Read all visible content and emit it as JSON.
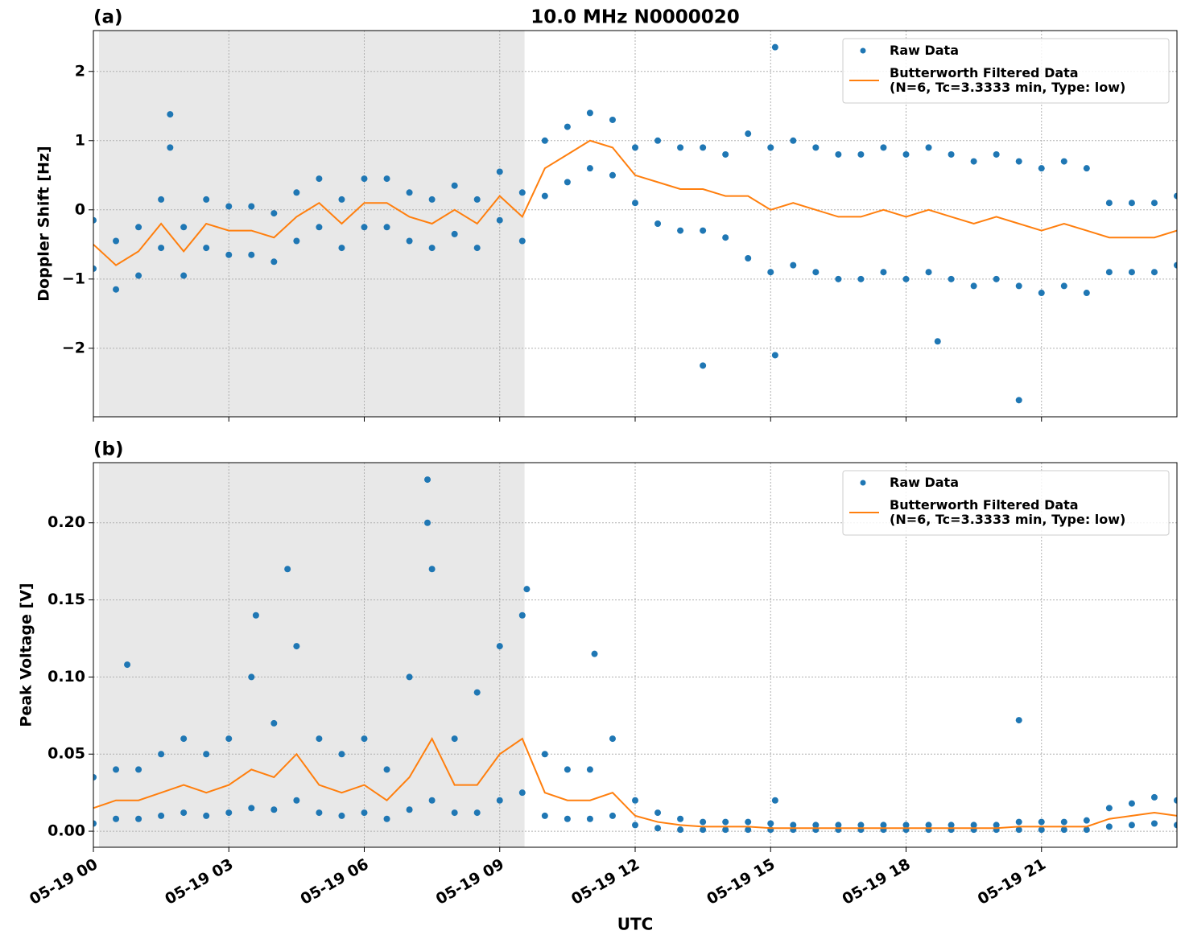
{
  "chart_data": [
    {
      "type": "line",
      "title": "10.0 MHz N0000020",
      "panel_label": "(a)",
      "ylabel": "Doppler Shift [Hz]",
      "xlim": [
        0,
        24
      ],
      "xticks": [
        0,
        3,
        6,
        9,
        12,
        15,
        18,
        21
      ],
      "ylim": [
        -2.99,
        2.59
      ],
      "yticks": [
        {
          "value": -2,
          "label": "−2"
        },
        {
          "value": -1,
          "label": "−1"
        },
        0,
        1,
        2
      ],
      "grid": true,
      "legend": "upper right",
      "shaded_span": [
        0.125,
        9.55
      ],
      "series": [
        {
          "name": "Raw Data",
          "kind": "scatter",
          "color": "#1f77b4",
          "x": [
            0,
            0.5,
            1,
            1.5,
            2,
            2.5,
            3,
            3.5,
            4,
            4.5,
            5,
            5.5,
            6,
            6.5,
            7,
            7.5,
            8,
            8.5,
            9,
            9.5,
            10,
            10.5,
            11,
            11.5,
            12,
            12.5,
            13,
            13.5,
            14,
            14.5,
            15,
            15.5,
            16,
            16.5,
            17,
            17.5,
            18,
            18.5,
            19,
            19.5,
            20,
            20.5,
            21,
            21.5,
            22,
            22.5,
            23,
            23.5,
            24,
            0,
            0.5,
            1,
            1.5,
            2,
            2.5,
            3,
            3.5,
            4,
            4.5,
            5,
            5.5,
            6,
            6.5,
            7,
            7.5,
            8,
            8.5,
            9,
            9.5,
            10,
            10.5,
            11,
            11.5,
            12,
            12.5,
            13,
            13.5,
            14,
            14.5,
            15,
            15.5,
            16,
            16.5,
            17,
            17.5,
            18,
            18.5,
            19,
            19.5,
            20,
            20.5,
            21,
            21.5,
            22,
            22.5,
            23,
            23.5,
            24,
            1.7,
            1.7,
            15.1,
            13.5,
            20.5,
            15.1,
            18.7
          ],
          "values": [
            -0.15,
            -0.45,
            -0.25,
            0.15,
            -0.25,
            0.15,
            0.05,
            0.05,
            -0.05,
            0.25,
            0.45,
            0.15,
            0.45,
            0.45,
            0.25,
            0.15,
            0.35,
            0.15,
            0.55,
            0.25,
            1.0,
            1.2,
            1.4,
            1.3,
            0.9,
            1.0,
            0.9,
            0.9,
            0.8,
            1.1,
            0.9,
            1.0,
            0.9,
            0.8,
            0.8,
            0.9,
            0.8,
            0.9,
            0.8,
            0.7,
            0.8,
            0.7,
            0.6,
            0.7,
            0.6,
            0.1,
            0.1,
            0.1,
            0.2,
            -0.85,
            -1.15,
            -0.95,
            -0.55,
            -0.95,
            -0.55,
            -0.65,
            -0.65,
            -0.75,
            -0.45,
            -0.25,
            -0.55,
            -0.25,
            -0.25,
            -0.45,
            -0.55,
            -0.35,
            -0.55,
            -0.15,
            -0.45,
            0.2,
            0.4,
            0.6,
            0.5,
            0.1,
            -0.2,
            -0.3,
            -0.3,
            -0.4,
            -0.7,
            -0.9,
            -0.8,
            -0.9,
            -1.0,
            -1.0,
            -0.9,
            -1.0,
            -0.9,
            -1.0,
            -1.1,
            -1.0,
            -1.1,
            -1.2,
            -1.1,
            -1.2,
            -0.9,
            -0.9,
            -0.9,
            -0.8,
            1.38,
            0.9,
            2.35,
            -2.25,
            -2.75,
            -2.1,
            -1.9
          ]
        },
        {
          "name": "Butterworth Filtered Data\n(N=6, Tc=3.3333 min, Type: low)",
          "kind": "line",
          "color": "#ff7f0e",
          "x": [
            0,
            0.5,
            1,
            1.5,
            2,
            2.5,
            3,
            3.5,
            4,
            4.5,
            5,
            5.5,
            6,
            6.5,
            7,
            7.5,
            8,
            8.5,
            9,
            9.5,
            10,
            10.5,
            11,
            11.5,
            12,
            12.5,
            13,
            13.5,
            14,
            14.5,
            15,
            15.5,
            16,
            16.5,
            17,
            17.5,
            18,
            18.5,
            19,
            19.5,
            20,
            20.5,
            21,
            21.5,
            22,
            22.5,
            23,
            23.5,
            24
          ],
          "values": [
            -0.5,
            -0.8,
            -0.6,
            -0.2,
            -0.6,
            -0.2,
            -0.3,
            -0.3,
            -0.4,
            -0.1,
            0.1,
            -0.2,
            0.1,
            0.1,
            -0.1,
            -0.2,
            0,
            -0.2,
            0.2,
            -0.1,
            0.6,
            0.8,
            1.0,
            0.9,
            0.5,
            0.4,
            0.3,
            0.3,
            0.2,
            0.2,
            0.0,
            0.1,
            0.0,
            -0.1,
            -0.1,
            0.0,
            -0.1,
            0.0,
            -0.1,
            -0.2,
            -0.1,
            -0.2,
            -0.3,
            -0.2,
            -0.3,
            -0.4,
            -0.4,
            -0.4,
            -0.3
          ]
        }
      ]
    },
    {
      "type": "line",
      "panel_label": "(b)",
      "ylabel": "Peak Voltage [V]",
      "xlabel": "UTC",
      "xlim": [
        0,
        24
      ],
      "xticks": [
        {
          "value": 0,
          "label": "05-19 00"
        },
        {
          "value": 3,
          "label": "05-19 03"
        },
        {
          "value": 6,
          "label": "05-19 06"
        },
        {
          "value": 9,
          "label": "05-19 09"
        },
        {
          "value": 12,
          "label": "05-19 12"
        },
        {
          "value": 15,
          "label": "05-19 15"
        },
        {
          "value": 18,
          "label": "05-19 18"
        },
        {
          "value": 21,
          "label": "05-19 21"
        }
      ],
      "ylim": [
        -0.0104,
        0.239
      ],
      "yticks": [
        {
          "value": 0,
          "label": "0.00"
        },
        0.05,
        {
          "value": 0.1,
          "label": "0.10"
        },
        0.15,
        {
          "value": 0.2,
          "label": "0.20"
        }
      ],
      "grid": true,
      "legend": "upper right",
      "shaded_span": [
        0.125,
        9.55
      ],
      "series": [
        {
          "name": "Raw Data",
          "kind": "scatter",
          "color": "#1f77b4",
          "x": [
            0,
            0.5,
            1,
            1.5,
            2,
            2.5,
            3,
            3.5,
            4,
            4.5,
            5,
            5.5,
            6,
            6.5,
            7,
            7.5,
            8,
            8.5,
            9,
            9.5,
            10,
            10.5,
            11,
            11.5,
            12,
            12.5,
            13,
            13.5,
            14,
            14.5,
            15,
            15.5,
            16,
            16.5,
            17,
            17.5,
            18,
            18.5,
            19,
            19.5,
            20,
            20.5,
            21,
            21.5,
            22,
            22.5,
            23,
            23.5,
            24,
            0,
            0.5,
            1,
            1.5,
            2,
            2.5,
            3,
            3.5,
            4,
            4.5,
            5,
            5.5,
            6,
            6.5,
            7,
            7.5,
            8,
            8.5,
            9,
            9.5,
            10,
            10.5,
            11,
            11.5,
            12,
            12.5,
            13,
            13.5,
            14,
            14.5,
            15,
            15.5,
            16,
            16.5,
            17,
            17.5,
            18,
            18.5,
            19,
            19.5,
            20,
            20.5,
            21,
            21.5,
            22,
            22.5,
            23,
            23.5,
            24,
            7.4,
            7.4,
            9.6,
            4.3,
            3.6,
            0.75,
            11.1,
            20.5,
            15.1
          ],
          "values": [
            0.035,
            0.04,
            0.04,
            0.05,
            0.06,
            0.05,
            0.06,
            0.1,
            0.07,
            0.12,
            0.06,
            0.05,
            0.06,
            0.04,
            0.1,
            0.17,
            0.06,
            0.09,
            0.12,
            0.14,
            0.05,
            0.04,
            0.04,
            0.06,
            0.02,
            0.012,
            0.008,
            0.006,
            0.006,
            0.006,
            0.005,
            0.004,
            0.004,
            0.004,
            0.004,
            0.004,
            0.004,
            0.004,
            0.004,
            0.004,
            0.004,
            0.006,
            0.006,
            0.006,
            0.007,
            0.015,
            0.018,
            0.022,
            0.02,
            0.005,
            0.008,
            0.008,
            0.01,
            0.012,
            0.01,
            0.012,
            0.015,
            0.014,
            0.02,
            0.012,
            0.01,
            0.012,
            0.008,
            0.014,
            0.02,
            0.012,
            0.012,
            0.02,
            0.025,
            0.01,
            0.008,
            0.008,
            0.01,
            0.004,
            0.002,
            0.001,
            0.001,
            0.001,
            0.001,
            0.001,
            0.001,
            0.001,
            0.001,
            0.001,
            0.001,
            0.001,
            0.001,
            0.001,
            0.001,
            0.001,
            0.001,
            0.001,
            0.001,
            0.001,
            0.003,
            0.004,
            0.005,
            0.004,
            0.228,
            0.2,
            0.157,
            0.17,
            0.14,
            0.108,
            0.115,
            0.072,
            0.02
          ]
        },
        {
          "name": "Butterworth Filtered Data\n(N=6, Tc=3.3333 min, Type: low)",
          "kind": "line",
          "color": "#ff7f0e",
          "x": [
            0,
            0.5,
            1,
            1.5,
            2,
            2.5,
            3,
            3.5,
            4,
            4.5,
            5,
            5.5,
            6,
            6.5,
            7,
            7.5,
            8,
            8.5,
            9,
            9.5,
            10,
            10.5,
            11,
            11.5,
            12,
            12.5,
            13,
            13.5,
            14,
            14.5,
            15,
            15.5,
            16,
            16.5,
            17,
            17.5,
            18,
            18.5,
            19,
            19.5,
            20,
            20.5,
            21,
            21.5,
            22,
            22.5,
            23,
            23.5,
            24
          ],
          "values": [
            0.015,
            0.02,
            0.02,
            0.025,
            0.03,
            0.025,
            0.03,
            0.04,
            0.035,
            0.05,
            0.03,
            0.025,
            0.03,
            0.02,
            0.035,
            0.06,
            0.03,
            0.03,
            0.05,
            0.06,
            0.025,
            0.02,
            0.02,
            0.025,
            0.01,
            0.006,
            0.004,
            0.003,
            0.003,
            0.003,
            0.002,
            0.002,
            0.002,
            0.002,
            0.002,
            0.002,
            0.002,
            0.002,
            0.002,
            0.002,
            0.002,
            0.003,
            0.003,
            0.003,
            0.003,
            0.008,
            0.01,
            0.012,
            0.01
          ]
        }
      ]
    }
  ]
}
